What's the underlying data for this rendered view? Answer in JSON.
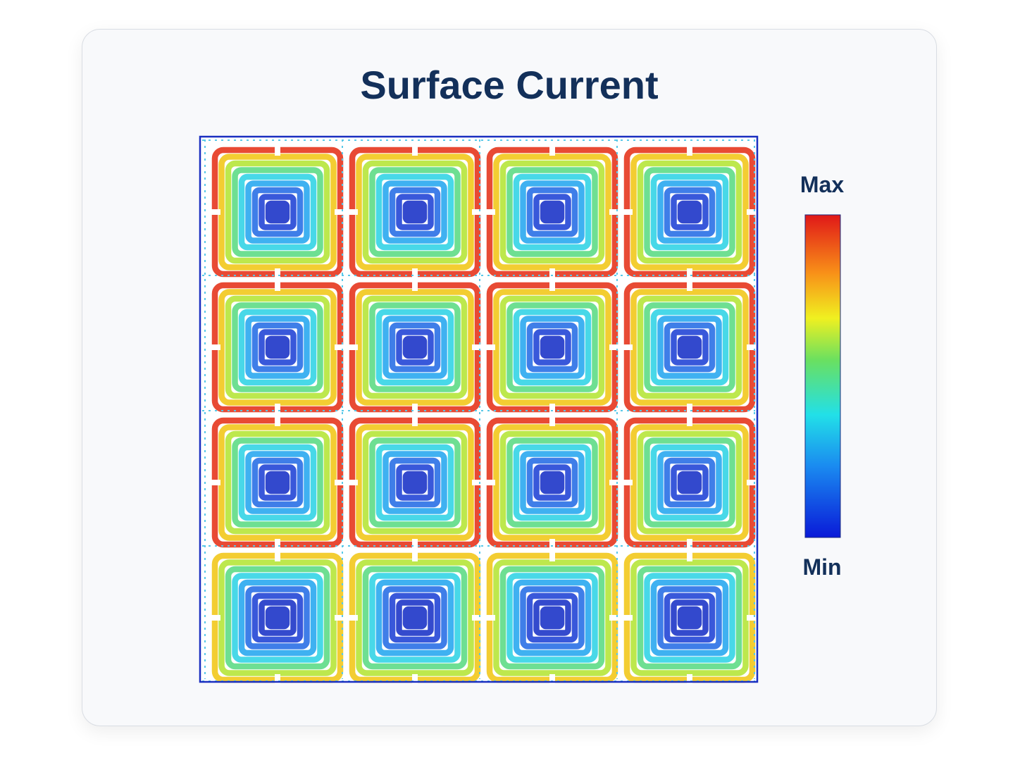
{
  "header": {
    "title": "Surface Current"
  },
  "colorbar": {
    "max_label": "Max",
    "min_label": "Min"
  }
}
